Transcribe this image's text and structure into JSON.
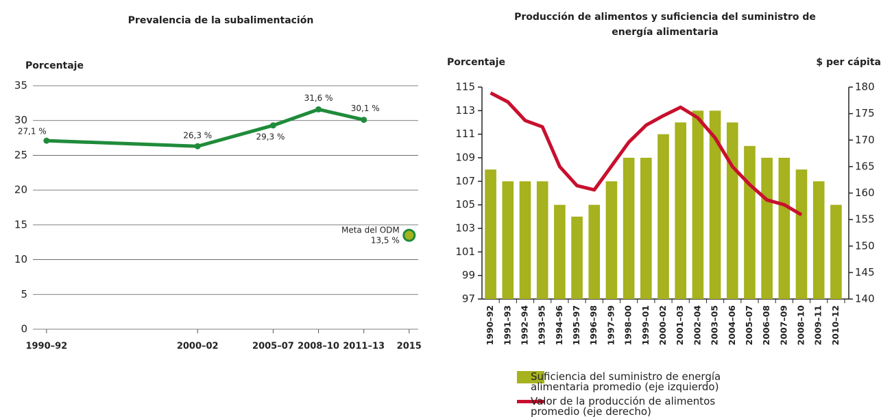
{
  "chart_data": [
    {
      "type": "line",
      "title": "Prevalencia de la subalimentación",
      "y_label": "Porcentaje",
      "x": [
        1991,
        2001,
        2006,
        2009,
        2012
      ],
      "values": [
        27.1,
        26.3,
        29.3,
        31.6,
        30.1
      ],
      "value_labels": [
        "27,1 %",
        "26,3 %",
        "29,3 %",
        "31,6 %",
        "30,1 %"
      ],
      "color": "#1f8b3b",
      "xlim": [
        1990.1,
        2015.6
      ],
      "xticks": [
        {
          "value": 1991,
          "label": "1990–92"
        },
        {
          "value": 2001,
          "label": "2000–02"
        },
        {
          "value": 2006,
          "label": "2005–07"
        },
        {
          "value": 2009,
          "label": "2008–10"
        },
        {
          "value": 2012,
          "label": "2011–13"
        },
        2015
      ],
      "ylim": [
        0,
        35
      ],
      "yticks": [
        0,
        5,
        10,
        15,
        20,
        25,
        30,
        35
      ],
      "grid": true,
      "target": {
        "x": 2015,
        "value": 13.5,
        "label": "Meta del ODM",
        "value_label": "13,5 %",
        "color": "#a6b21e"
      }
    },
    {
      "type": "bar-line",
      "title": "Producción de alimentos y suficiencia del suministro de energía alimentaria",
      "y_label": "Porcentaje",
      "y2_label": "$ per cápita",
      "categories": [
        "1990–92",
        "1991–93",
        "1992–94",
        "1993–95",
        "1994–96",
        "1995–97",
        "1996–98",
        "1997–99",
        "1998–00",
        "1999–01",
        "2000–02",
        "2001–03",
        "2002–04",
        "2003–05",
        "2004–06",
        "2005–07",
        "2006–08",
        "2007–09",
        "2008–10",
        "2009–11",
        "2010–12"
      ],
      "series": [
        {
          "name": "Suficiencia del suministro de energía alimentaria promedio (eje izquierdo)",
          "color": "#a6b21e",
          "values": [
            108,
            107,
            107,
            107,
            105,
            104,
            105,
            107,
            109,
            109,
            111,
            112,
            113,
            113,
            112,
            110,
            109,
            109,
            108,
            107,
            105
          ]
        },
        {
          "name": "Valor de la producción de alimentos promedio (eje derecho)",
          "color": "#c8102e",
          "axis": "y2",
          "values": [
            178.9,
            177.2,
            173.7,
            172.5,
            165,
            161.4,
            160.6,
            165.1,
            169.6,
            172.8,
            174.6,
            176.2,
            174.2,
            170.4,
            165,
            161.6,
            158.7,
            157.8,
            155.9,
            null,
            null
          ]
        }
      ],
      "ylim": [
        97,
        115
      ],
      "yticks": [
        97,
        99,
        101,
        103,
        105,
        107,
        109,
        111,
        113,
        115
      ],
      "y2lim": [
        140,
        180
      ],
      "y2ticks": [
        140,
        145,
        150,
        155,
        160,
        165,
        170,
        175,
        180
      ]
    }
  ]
}
